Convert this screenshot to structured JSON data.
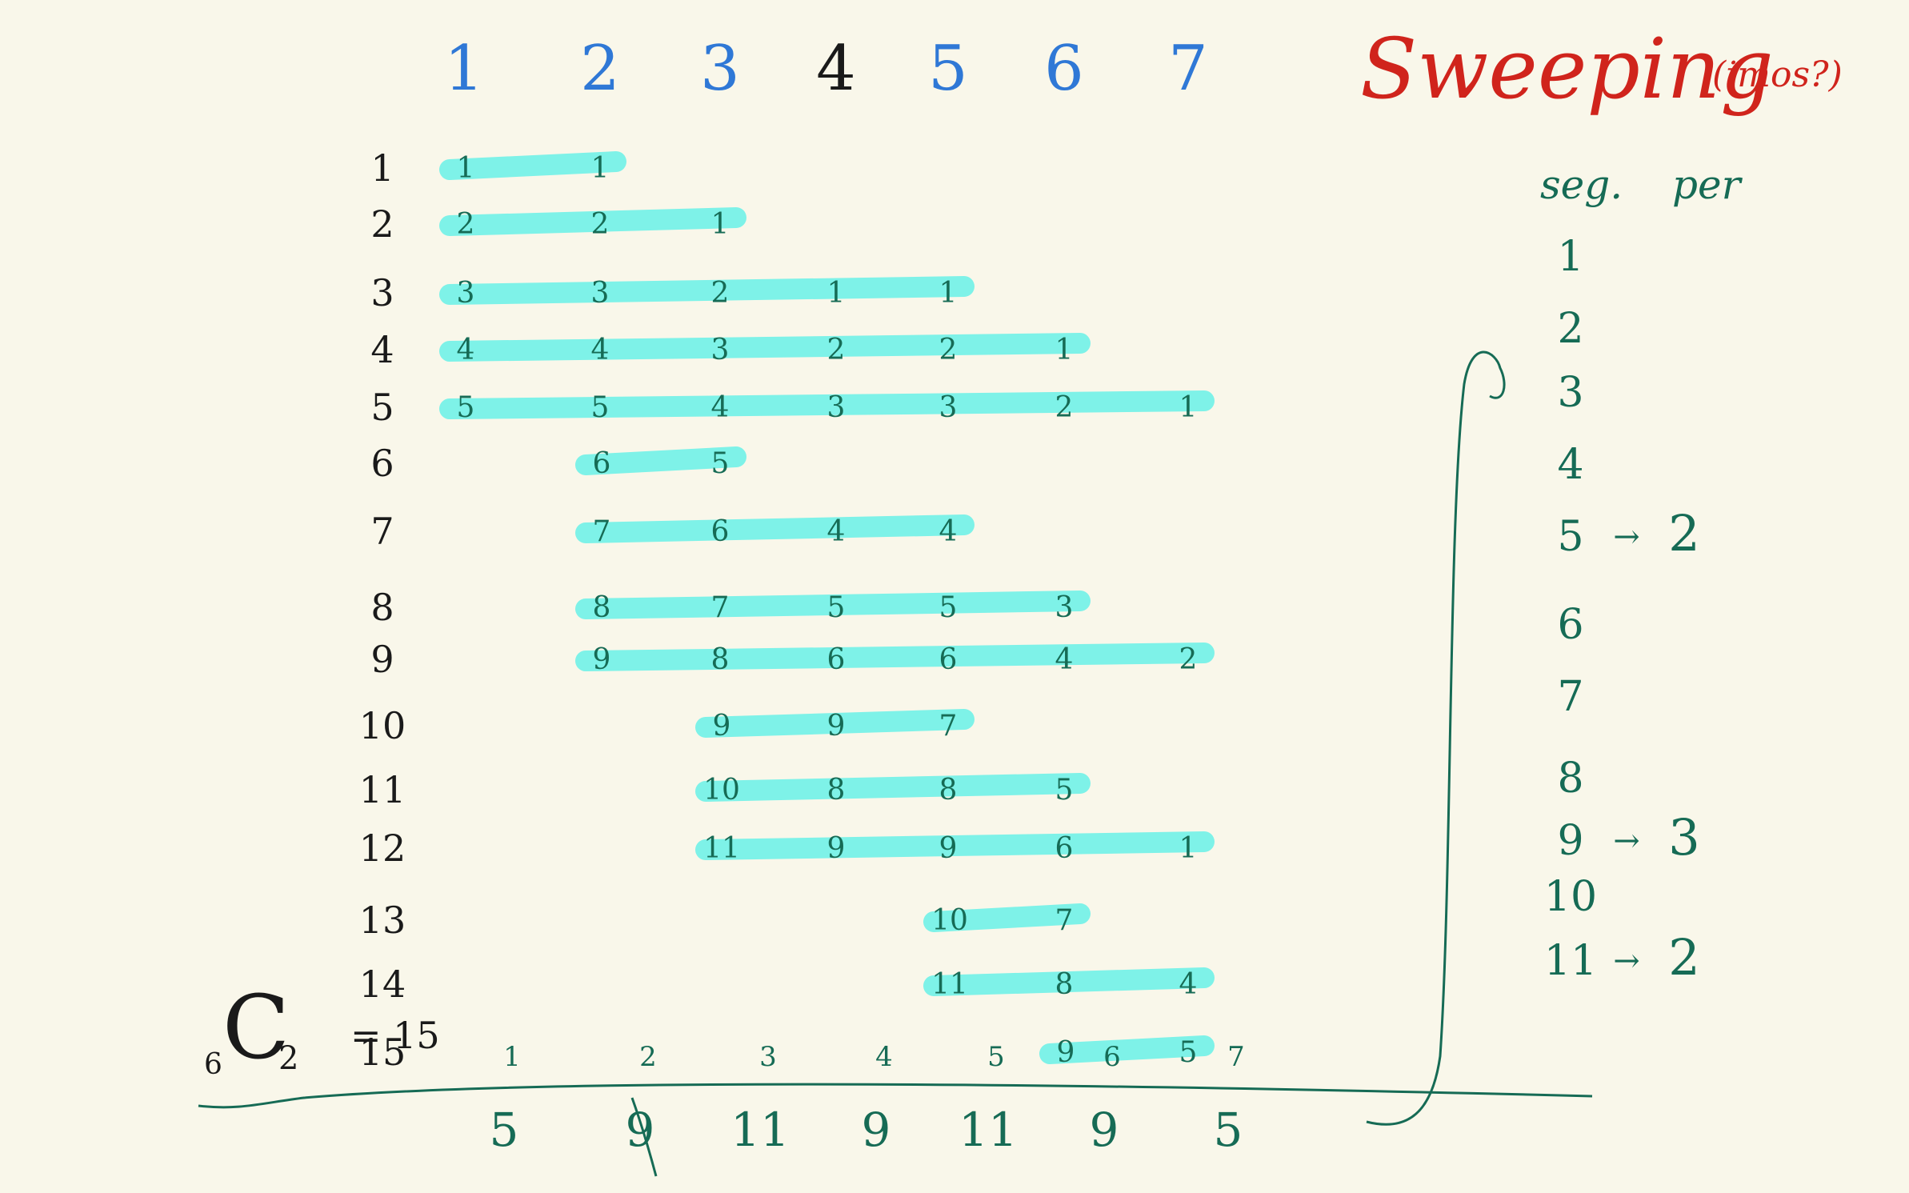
{
  "colors": {
    "background": "#f9f7ea",
    "highlight": "#7ef2e8",
    "ink_green": "#166b55",
    "ink_blue": "#2f78d6",
    "ink_black": "#1a1a1a",
    "ink_red": "#d0241c"
  },
  "title": "Sweeping",
  "subtitle": "(imos?)",
  "column_headers": [
    {
      "label": "1",
      "color": "blue"
    },
    {
      "label": "2",
      "color": "blue"
    },
    {
      "label": "3",
      "color": "blue"
    },
    {
      "label": "4",
      "color": "black"
    },
    {
      "label": "5",
      "color": "blue"
    },
    {
      "label": "6",
      "color": "blue"
    },
    {
      "label": "7",
      "color": "blue"
    }
  ],
  "rows": [
    {
      "label": "1",
      "start": 1,
      "end": 2,
      "marks": [
        "1",
        "1"
      ]
    },
    {
      "label": "2",
      "start": 1,
      "end": 3,
      "marks": [
        "2",
        "2",
        "1"
      ]
    },
    {
      "label": "3",
      "start": 1,
      "end": 5,
      "marks": [
        "3",
        "3",
        "2",
        "1",
        "1"
      ]
    },
    {
      "label": "4",
      "start": 1,
      "end": 6,
      "marks": [
        "4",
        "4",
        "3",
        "2",
        "2",
        "1"
      ]
    },
    {
      "label": "5",
      "start": 1,
      "end": 7,
      "marks": [
        "5",
        "5",
        "4",
        "3",
        "3",
        "2",
        "1"
      ]
    },
    {
      "label": "6",
      "start": 2,
      "end": 3,
      "marks": [
        "6",
        "5"
      ]
    },
    {
      "label": "7",
      "start": 2,
      "end": 5,
      "marks": [
        "7",
        "6",
        "4",
        "4"
      ]
    },
    {
      "label": "8",
      "start": 2,
      "end": 6,
      "marks": [
        "8",
        "7",
        "5",
        "5",
        "3"
      ]
    },
    {
      "label": "9",
      "start": 2,
      "end": 7,
      "marks": [
        "9",
        "8",
        "6",
        "6",
        "4",
        "2"
      ]
    },
    {
      "label": "10",
      "start": 3,
      "end": 5,
      "marks": [
        "9",
        "9",
        "7"
      ]
    },
    {
      "label": "11",
      "start": 3,
      "end": 6,
      "marks": [
        "10",
        "8",
        "8",
        "5"
      ]
    },
    {
      "label": "12",
      "start": 3,
      "end": 7,
      "marks": [
        "11",
        "9",
        "9",
        "6",
        "1"
      ]
    },
    {
      "label": "13",
      "start": 5,
      "end": 6,
      "marks": [
        "10",
        "7"
      ]
    },
    {
      "label": "14",
      "start": 5,
      "end": 7,
      "marks": [
        "11",
        "8",
        "4"
      ]
    },
    {
      "label": "15",
      "start": 6,
      "end": 7,
      "marks": [
        "9",
        "5"
      ]
    }
  ],
  "combination": {
    "n": "6",
    "symbol": "C",
    "k": "2",
    "eq": "= 15"
  },
  "bottom_index": [
    "1",
    "2",
    "3",
    "4",
    "5",
    "6",
    "7"
  ],
  "bottom_counts": [
    "5",
    "9",
    "11",
    "9",
    "11",
    "9",
    "5"
  ],
  "side_panel": {
    "header_seg": "seg.",
    "header_per": "per",
    "items": [
      {
        "seg": "1",
        "per": ""
      },
      {
        "seg": "2",
        "per": ""
      },
      {
        "seg": "3",
        "per": ""
      },
      {
        "seg": "4",
        "per": ""
      },
      {
        "seg": "5",
        "per": "2"
      },
      {
        "seg": "6",
        "per": ""
      },
      {
        "seg": "7",
        "per": ""
      },
      {
        "seg": "8",
        "per": ""
      },
      {
        "seg": "9",
        "per": "3"
      },
      {
        "seg": "10",
        "per": ""
      },
      {
        "seg": "11",
        "per": "2"
      }
    ],
    "arrow": "→"
  }
}
